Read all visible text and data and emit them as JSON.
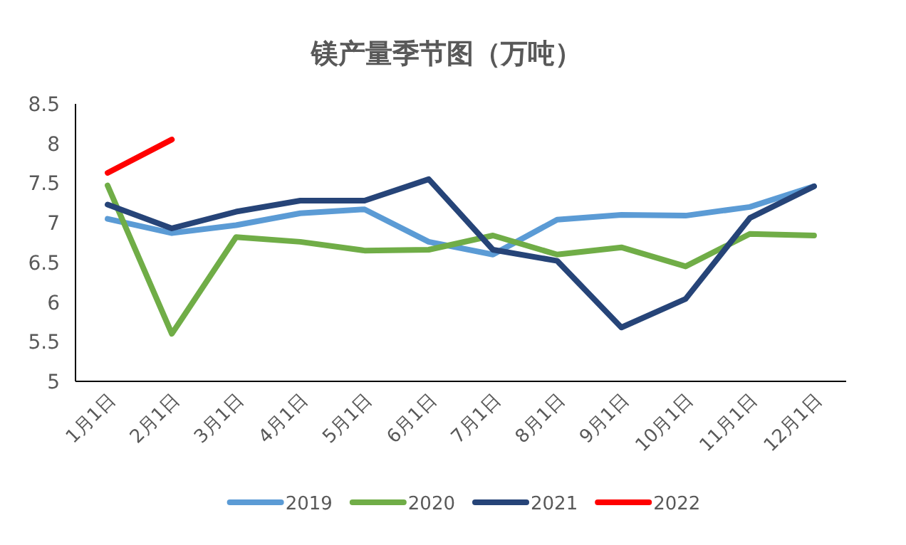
{
  "chart_data": {
    "type": "line",
    "title": "镁产量季节图（万吨）",
    "categories": [
      "1月1日",
      "2月1日",
      "3月1日",
      "4月1日",
      "5月1日",
      "6月1日",
      "7月1日",
      "8月1日",
      "9月1日",
      "10月1日",
      "11月1日",
      "12月1日"
    ],
    "series": [
      {
        "name": "2019",
        "color": "#5b9bd5",
        "values": [
          7.05,
          6.87,
          6.97,
          7.12,
          7.17,
          6.76,
          6.6,
          7.04,
          7.1,
          7.09,
          7.2,
          7.46
        ]
      },
      {
        "name": "2020",
        "color": "#70ad47",
        "values": [
          7.47,
          5.6,
          6.82,
          6.76,
          6.65,
          6.66,
          6.84,
          6.6,
          6.69,
          6.45,
          6.86,
          6.84
        ]
      },
      {
        "name": "2021",
        "color": "#264478",
        "values": [
          7.23,
          6.93,
          7.14,
          7.28,
          7.28,
          7.55,
          6.66,
          6.52,
          5.68,
          6.04,
          7.06,
          7.46
        ]
      },
      {
        "name": "2022",
        "color": "#ff0000",
        "values": [
          7.63,
          8.05,
          null,
          null,
          null,
          null,
          null,
          null,
          null,
          null,
          null,
          null
        ]
      }
    ],
    "ylim": [
      5,
      8.5
    ],
    "yticks": [
      5,
      5.5,
      6,
      6.5,
      7,
      7.5,
      8,
      8.5
    ],
    "grid": false,
    "legend": "bottom",
    "marker": "none",
    "line_style": "solid"
  }
}
